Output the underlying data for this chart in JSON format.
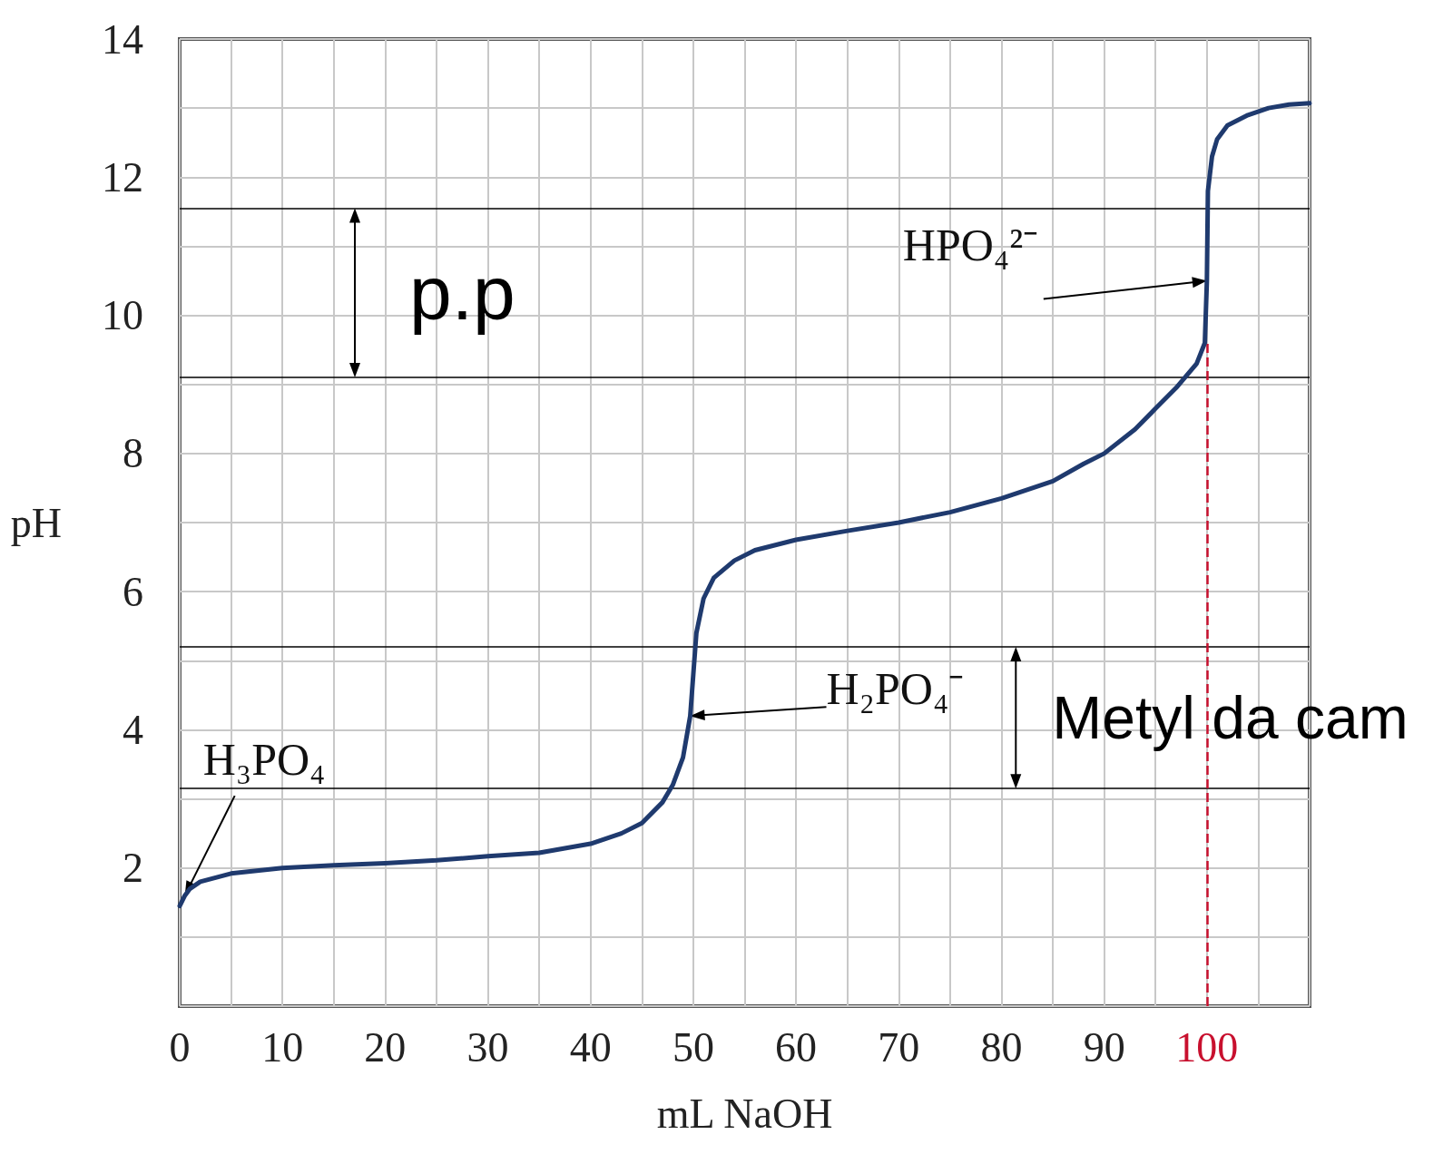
{
  "chart_data": {
    "type": "line",
    "xlabel": "mL NaOH",
    "ylabel": "pH",
    "x": [
      0,
      0.5,
      1,
      2,
      5,
      10,
      15,
      20,
      25,
      30,
      35,
      40,
      43,
      45,
      47,
      48,
      49,
      49.7,
      50,
      50.3,
      51,
      52,
      54,
      56,
      60,
      65,
      70,
      75,
      80,
      85,
      88,
      90,
      93,
      95,
      97,
      99,
      99.8,
      100,
      100.1,
      100.5,
      101,
      102,
      104,
      106,
      108,
      110
    ],
    "series": [
      {
        "color": "#1f3a6e",
        "values": [
          1.45,
          1.6,
          1.7,
          1.8,
          1.92,
          2.0,
          2.04,
          2.07,
          2.11,
          2.17,
          2.22,
          2.35,
          2.5,
          2.65,
          2.95,
          3.2,
          3.6,
          4.2,
          4.8,
          5.4,
          5.9,
          6.2,
          6.45,
          6.6,
          6.75,
          6.88,
          7.0,
          7.15,
          7.35,
          7.6,
          7.85,
          8.0,
          8.35,
          8.65,
          8.95,
          9.3,
          9.6,
          10.5,
          11.8,
          12.3,
          12.55,
          12.75,
          12.9,
          13.0,
          13.05,
          13.07
        ]
      }
    ],
    "xlim": [
      0,
      110
    ],
    "xticks": [
      0,
      {
        "value": 5,
        "label": null
      },
      10,
      {
        "value": 15,
        "label": null
      },
      20,
      {
        "value": 25,
        "label": null
      },
      30,
      {
        "value": 35,
        "label": null
      },
      40,
      {
        "value": 45,
        "label": null
      },
      50,
      {
        "value": 55,
        "label": null
      },
      60,
      {
        "value": 65,
        "label": null
      },
      70,
      {
        "value": 75,
        "label": null
      },
      80,
      {
        "value": 85,
        "label": null
      },
      90,
      {
        "value": 95,
        "label": null
      },
      100,
      {
        "value": 105,
        "label": null
      },
      {
        "value": 110,
        "label": null
      }
    ],
    "ylim": [
      0,
      14
    ],
    "yticks": [
      {
        "value": 0,
        "label": null
      },
      {
        "value": 1,
        "label": null
      },
      2,
      {
        "value": 3,
        "label": null
      },
      4,
      {
        "value": 5,
        "label": null
      },
      6,
      {
        "value": 7,
        "label": null
      },
      8,
      {
        "value": 9,
        "label": null
      },
      10,
      {
        "value": 11,
        "label": null
      },
      12,
      {
        "value": 13,
        "label": null
      },
      14
    ],
    "ref_lines": [
      {
        "axis": "y",
        "value": 11.55,
        "color": "#000000"
      },
      {
        "axis": "y",
        "value": 9.1,
        "color": "#000000"
      },
      {
        "axis": "y",
        "value": 5.2,
        "color": "#000000"
      },
      {
        "axis": "y",
        "value": 3.15,
        "color": "#000000"
      },
      {
        "axis": "x",
        "value": 100,
        "color": "#c8102e",
        "line_style": "dashed"
      }
    ],
    "annotations": [
      "p.p",
      "Metyl da cam",
      {
        "text": "H₃PO₄",
        "x": 0.5,
        "y": 1.6
      },
      {
        "text": "H₂PO₄⁻",
        "x": 49.7,
        "y": 4.2
      },
      {
        "text": "HPO₄²⁻",
        "x": 100,
        "y": 10.5
      }
    ],
    "grid": true,
    "marker": "none",
    "line_style": "solid"
  }
}
